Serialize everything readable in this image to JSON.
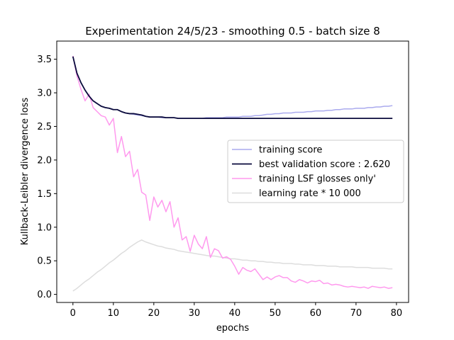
{
  "chart_data": {
    "type": "line",
    "title": "Experimentation 24/5/23 - smoothing 0.5 - batch size 8",
    "xlabel": "epochs",
    "ylabel": "Kullback-Leibler divergence loss",
    "xlim": [
      -4,
      83
    ],
    "ylim": [
      -0.12,
      3.77
    ],
    "xticks": [
      0,
      10,
      20,
      30,
      40,
      50,
      60,
      70,
      80
    ],
    "yticks": [
      0.0,
      0.5,
      1.0,
      1.5,
      2.0,
      2.5,
      3.0,
      3.5
    ],
    "xtick_labels": [
      "0",
      "10",
      "20",
      "30",
      "40",
      "50",
      "60",
      "70",
      "80"
    ],
    "ytick_labels": [
      "0.0",
      "0.5",
      "1.0",
      "1.5",
      "2.0",
      "2.5",
      "3.0",
      "3.5"
    ],
    "grid": false,
    "legend_position": "center-right",
    "series": [
      {
        "name": "training score",
        "color": "#aaaaee",
        "values": [
          3.54,
          3.29,
          3.15,
          3.04,
          2.95,
          2.88,
          2.84,
          2.8,
          2.78,
          2.77,
          2.75,
          2.75,
          2.72,
          2.7,
          2.69,
          2.68,
          2.67,
          2.66,
          2.65,
          2.64,
          2.64,
          2.64,
          2.63,
          2.63,
          2.63,
          2.63,
          2.62,
          2.62,
          2.62,
          2.62,
          2.62,
          2.62,
          2.62,
          2.63,
          2.63,
          2.63,
          2.63,
          2.63,
          2.64,
          2.64,
          2.64,
          2.64,
          2.65,
          2.65,
          2.65,
          2.66,
          2.66,
          2.67,
          2.68,
          2.68,
          2.69,
          2.69,
          2.7,
          2.7,
          2.7,
          2.71,
          2.71,
          2.71,
          2.72,
          2.72,
          2.73,
          2.73,
          2.73,
          2.74,
          2.74,
          2.75,
          2.75,
          2.76,
          2.76,
          2.76,
          2.77,
          2.77,
          2.77,
          2.78,
          2.78,
          2.79,
          2.79,
          2.8,
          2.8,
          2.81
        ]
      },
      {
        "name": "best validation score : 2.620",
        "color": "#0a0a3c",
        "values": [
          3.54,
          3.29,
          3.15,
          3.04,
          2.95,
          2.88,
          2.84,
          2.8,
          2.78,
          2.77,
          2.75,
          2.75,
          2.72,
          2.7,
          2.69,
          2.69,
          2.68,
          2.67,
          2.65,
          2.64,
          2.64,
          2.64,
          2.64,
          2.63,
          2.63,
          2.63,
          2.62,
          2.62,
          2.62,
          2.62,
          2.62,
          2.62,
          2.62,
          2.62,
          2.62,
          2.62,
          2.62,
          2.62,
          2.62,
          2.62,
          2.62,
          2.62,
          2.62,
          2.62,
          2.62,
          2.62,
          2.62,
          2.62,
          2.62,
          2.62,
          2.62,
          2.62,
          2.62,
          2.62,
          2.62,
          2.62,
          2.62,
          2.62,
          2.62,
          2.62,
          2.62,
          2.62,
          2.62,
          2.62,
          2.62,
          2.62,
          2.62,
          2.62,
          2.62,
          2.62,
          2.62,
          2.62,
          2.62,
          2.62,
          2.62,
          2.62,
          2.62,
          2.62,
          2.62,
          2.62
        ]
      },
      {
        "name": "training LSF glosses only'",
        "color": "#ff99ee",
        "values": [
          3.55,
          3.25,
          3.05,
          2.88,
          2.98,
          2.78,
          2.72,
          2.66,
          2.64,
          2.52,
          2.62,
          2.11,
          2.35,
          2.05,
          2.13,
          1.75,
          1.86,
          1.52,
          1.48,
          1.1,
          1.45,
          1.3,
          1.4,
          1.23,
          1.38,
          1.0,
          1.14,
          0.81,
          0.86,
          0.64,
          0.88,
          0.75,
          0.68,
          0.86,
          0.55,
          0.68,
          0.65,
          0.54,
          0.56,
          0.52,
          0.42,
          0.3,
          0.4,
          0.36,
          0.34,
          0.38,
          0.3,
          0.22,
          0.26,
          0.22,
          0.26,
          0.28,
          0.25,
          0.25,
          0.2,
          0.18,
          0.22,
          0.2,
          0.17,
          0.2,
          0.19,
          0.21,
          0.16,
          0.17,
          0.14,
          0.15,
          0.14,
          0.12,
          0.11,
          0.12,
          0.11,
          0.1,
          0.11,
          0.09,
          0.12,
          0.11,
          0.1,
          0.11,
          0.09,
          0.1
        ]
      },
      {
        "name": "learning rate * 10 000",
        "color": "#dddddd",
        "values": [
          0.05,
          0.09,
          0.14,
          0.19,
          0.23,
          0.28,
          0.33,
          0.37,
          0.42,
          0.47,
          0.51,
          0.56,
          0.61,
          0.65,
          0.7,
          0.74,
          0.78,
          0.81,
          0.78,
          0.76,
          0.74,
          0.72,
          0.71,
          0.69,
          0.68,
          0.67,
          0.65,
          0.64,
          0.63,
          0.62,
          0.61,
          0.6,
          0.59,
          0.58,
          0.57,
          0.57,
          0.56,
          0.55,
          0.54,
          0.53,
          0.53,
          0.52,
          0.51,
          0.51,
          0.5,
          0.5,
          0.49,
          0.49,
          0.48,
          0.48,
          0.47,
          0.47,
          0.46,
          0.46,
          0.46,
          0.45,
          0.45,
          0.44,
          0.44,
          0.44,
          0.43,
          0.43,
          0.43,
          0.42,
          0.42,
          0.42,
          0.41,
          0.41,
          0.41,
          0.41,
          0.4,
          0.4,
          0.4,
          0.4,
          0.39,
          0.39,
          0.39,
          0.39,
          0.38,
          0.38
        ]
      }
    ]
  }
}
